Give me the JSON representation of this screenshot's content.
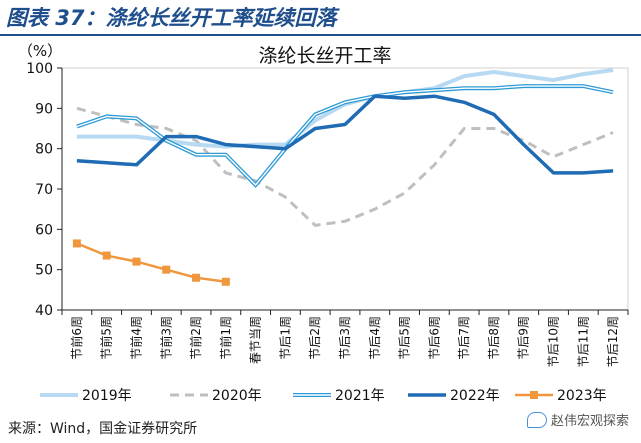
{
  "figure": {
    "label": "图表 37：涤纶长丝开工率延续回落",
    "source": "来源：Wind，国金证券研究所",
    "watermark": "赵伟宏观探索"
  },
  "chart_data": {
    "type": "line",
    "title": "涤纶长丝开工率",
    "ylabel": "（%）",
    "xlabel": "",
    "ylim": [
      40,
      100
    ],
    "yticks": [
      40,
      50,
      60,
      70,
      80,
      90,
      100
    ],
    "grid": false,
    "legend_position": "bottom",
    "categories": [
      "节前6周",
      "节前5周",
      "节前4周",
      "节前3周",
      "节前2周",
      "节前1周",
      "春节当周",
      "节后1周",
      "节后2周",
      "节后3周",
      "节后4周",
      "节后5周",
      "节后6周",
      "节后7周",
      "节后8周",
      "节后9周",
      "节后10周",
      "节后11周",
      "节后12周"
    ],
    "series": [
      {
        "name": "2019年",
        "style": "thick-light",
        "color": "#b7d9f2",
        "values": [
          83,
          83,
          83,
          82,
          81,
          80.5,
          81,
          81,
          87,
          91,
          93,
          94,
          95,
          98,
          99,
          98,
          97,
          98.5,
          99.5
        ]
      },
      {
        "name": "2020年",
        "style": "dashed",
        "color": "#bfbfbf",
        "values": [
          90,
          88,
          86,
          85,
          82,
          74,
          72,
          68,
          61,
          62,
          65,
          69,
          76,
          85,
          85,
          82,
          78,
          81,
          84
        ]
      },
      {
        "name": "2021年",
        "style": "double",
        "color": "#2e9bd6",
        "values": [
          85.5,
          88,
          87.5,
          82,
          78.5,
          78.5,
          71,
          80,
          88.5,
          91.5,
          93,
          94,
          94.5,
          95,
          95,
          95.5,
          95.5,
          95.5,
          94
        ]
      },
      {
        "name": "2022年",
        "style": "thick",
        "color": "#1f6cb5",
        "values": [
          77,
          76.5,
          76,
          83,
          83,
          81,
          80.5,
          80,
          85,
          86,
          93,
          92.5,
          93,
          91.5,
          88.5,
          81,
          74,
          74,
          74.5
        ]
      },
      {
        "name": "2023年",
        "style": "marker",
        "color": "#f0963c",
        "values": [
          56.5,
          53.5,
          52,
          50,
          48,
          47,
          null,
          null,
          null,
          null,
          null,
          null,
          null,
          null,
          null,
          null,
          null,
          null,
          null
        ]
      }
    ]
  }
}
